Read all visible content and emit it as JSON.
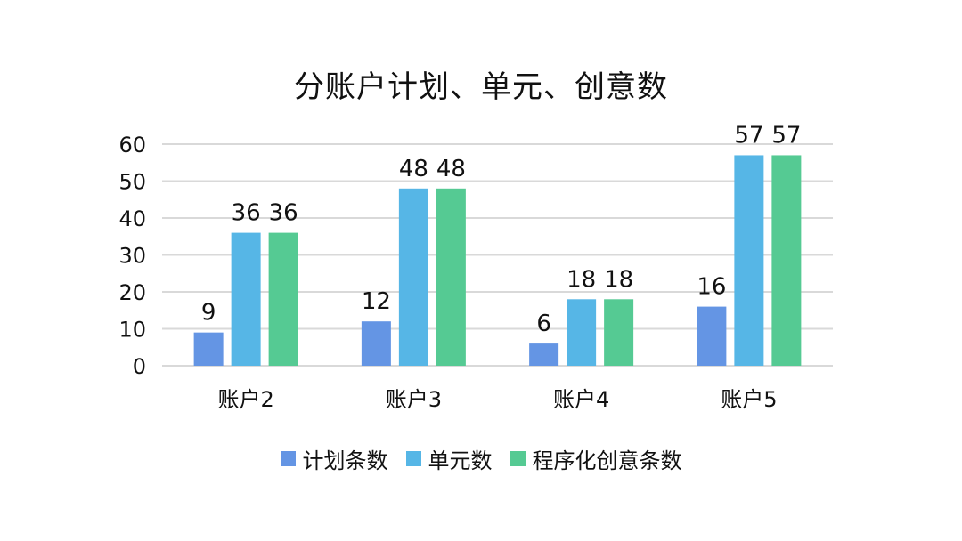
{
  "chart_data": {
    "type": "bar",
    "title": "分账户计划、单元、创意数",
    "xlabel": "",
    "ylabel": "",
    "categories": [
      "账户2",
      "账户3",
      "账户4",
      "账户5"
    ],
    "series": [
      {
        "name": "计划条数",
        "values": [
          9,
          12,
          6,
          16
        ],
        "color": "#6495e4"
      },
      {
        "name": "单元数",
        "values": [
          36,
          48,
          18,
          57
        ],
        "color": "#56b6e6"
      },
      {
        "name": "程序化创意条数",
        "values": [
          36,
          48,
          18,
          57
        ],
        "color": "#55ca93"
      }
    ],
    "ylim": [
      0,
      60
    ],
    "yticks": [
      0,
      10,
      20,
      30,
      40,
      50,
      60
    ],
    "grid": true,
    "legend_position": "bottom",
    "data_labels": true
  }
}
